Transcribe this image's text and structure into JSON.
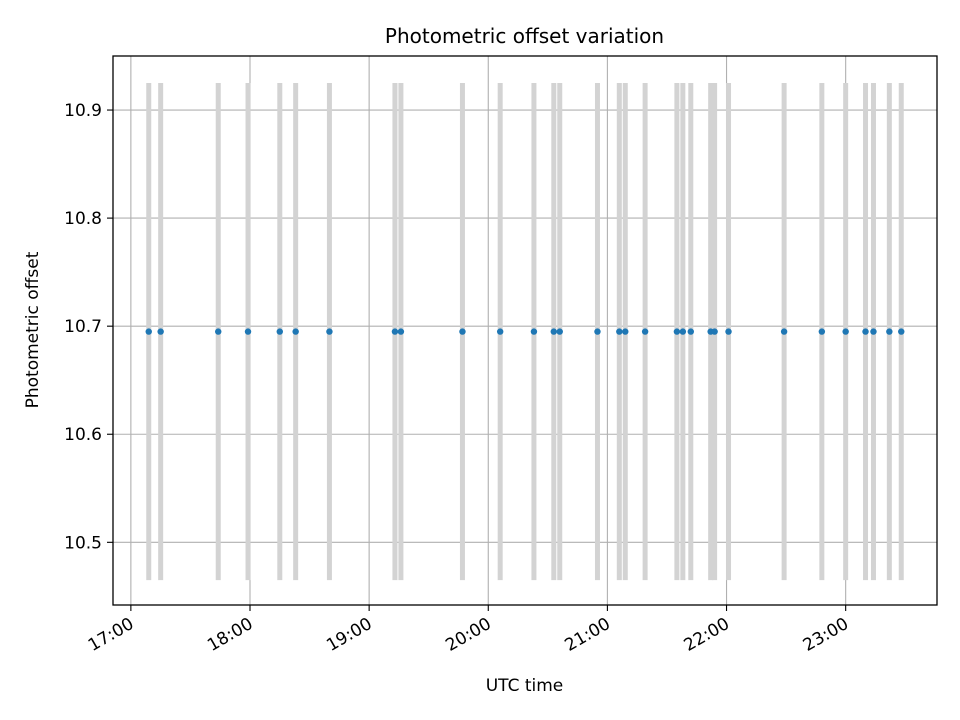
{
  "chart_data": {
    "type": "scatter",
    "title": "Photometric offset variation",
    "xlabel": "UTC time",
    "ylabel": "Photometric offset",
    "xlim": [
      "16:51",
      "23:46"
    ],
    "ylim": [
      10.442,
      10.95
    ],
    "x_ticks": [
      "17:00",
      "18:00",
      "19:00",
      "20:00",
      "21:00",
      "22:00",
      "23:00"
    ],
    "y_ticks": [
      "10.5",
      "10.6",
      "10.7",
      "10.8",
      "10.9"
    ],
    "grid": true,
    "error_bar_color": "#d3d3d3",
    "marker_color": "#1f77b4",
    "series": [
      {
        "y_value": 10.695,
        "y_error": 0.23,
        "x": [
          "17:09",
          "17:15",
          "17:44",
          "17:59",
          "18:15",
          "18:23",
          "18:40",
          "19:13",
          "19:16",
          "19:47",
          "20:06",
          "20:23",
          "20:33",
          "20:36",
          "20:55",
          "21:06",
          "21:09",
          "21:19",
          "21:35",
          "21:38",
          "21:42",
          "21:52",
          "21:54",
          "22:01",
          "22:29",
          "22:48",
          "23:00",
          "23:10",
          "23:14",
          "23:22",
          "23:28"
        ]
      }
    ]
  }
}
